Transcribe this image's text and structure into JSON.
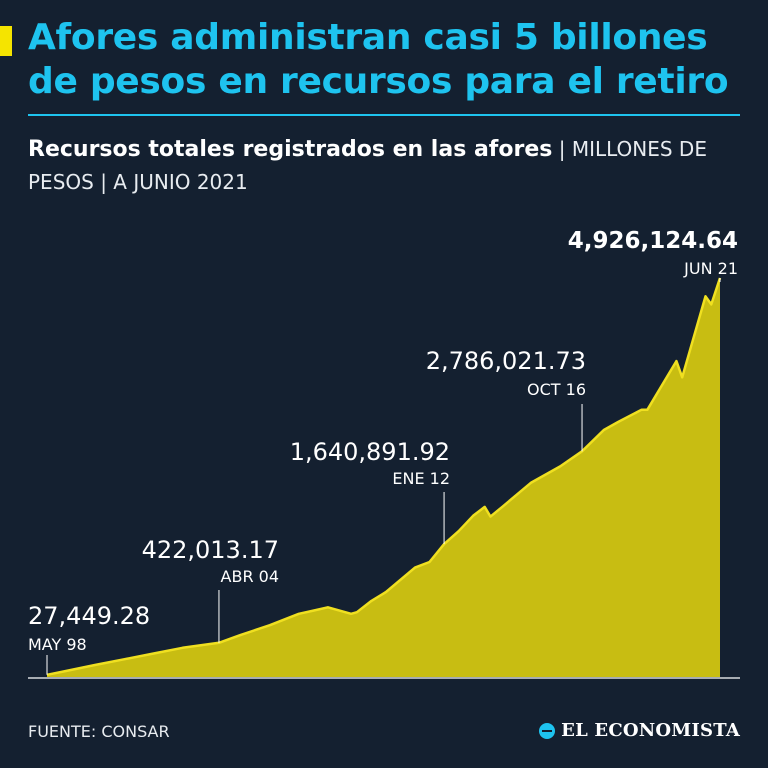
{
  "header": {
    "title": "Afores administran casi 5 billones de pesos en recursos para el retiro",
    "subtitle_bold": "Recursos totales registrados en las afores",
    "subtitle_rest": "| MILLONES DE PESOS | A JUNIO 2021"
  },
  "footer": {
    "source": "FUENTE: CONSAR",
    "logo_text": "EL ECONOMISTA",
    "logo_icon": "el-economista-logo-icon"
  },
  "colors": {
    "background": "#142030",
    "title": "#1ec3ef",
    "accent": "#f5e400",
    "area_fill": "#c8bd12",
    "area_line": "#f0e020"
  },
  "chart_data": {
    "type": "area",
    "x_start": "1998-05",
    "x_end": "2021-06",
    "ylim": [
      0,
      5000000
    ],
    "series": [
      {
        "values": [
          [
            1998.33,
            27449.28
          ],
          [
            1999.0,
            75000
          ],
          [
            2000.0,
            150000
          ],
          [
            2001.0,
            220000
          ],
          [
            2002.0,
            290000
          ],
          [
            2003.0,
            360000
          ],
          [
            2004.25,
            422013.17
          ],
          [
            2005.0,
            520000
          ],
          [
            2006.0,
            640000
          ],
          [
            2007.0,
            780000
          ],
          [
            2007.5,
            820000
          ],
          [
            2008.0,
            860000
          ],
          [
            2008.8,
            780000
          ],
          [
            2009.0,
            800000
          ],
          [
            2009.5,
            940000
          ],
          [
            2010.0,
            1050000
          ],
          [
            2011.0,
            1350000
          ],
          [
            2011.5,
            1420000
          ],
          [
            2012.0,
            1640891.92
          ],
          [
            2012.5,
            1800000
          ],
          [
            2013.0,
            1990000
          ],
          [
            2013.4,
            2100000
          ],
          [
            2013.6,
            1980000
          ],
          [
            2014.0,
            2100000
          ],
          [
            2015.0,
            2400000
          ],
          [
            2016.0,
            2600000
          ],
          [
            2016.75,
            2786021.73
          ],
          [
            2017.5,
            3050000
          ],
          [
            2018.0,
            3150000
          ],
          [
            2018.8,
            3300000
          ],
          [
            2019.0,
            3300000
          ],
          [
            2020.0,
            3900000
          ],
          [
            2020.2,
            3700000
          ],
          [
            2021.0,
            4700000
          ],
          [
            2021.2,
            4600000
          ],
          [
            2021.5,
            4926124.64
          ]
        ]
      }
    ],
    "annotations": [
      {
        "value": "27,449.28",
        "label": "MAY 98",
        "x": 1998.33,
        "y": 27449.28
      },
      {
        "value": "422,013.17",
        "label": "ABR 04",
        "x": 2004.25,
        "y": 422013.17
      },
      {
        "value": "1,640,891.92",
        "label": "ENE 12",
        "x": 2012.0,
        "y": 1640891.92
      },
      {
        "value": "2,786,021.73",
        "label": "OCT 16",
        "x": 2016.75,
        "y": 2786021.73
      },
      {
        "value": "4,926,124.64",
        "label": "JUN 21",
        "x": 2021.5,
        "y": 4926124.64
      }
    ]
  }
}
